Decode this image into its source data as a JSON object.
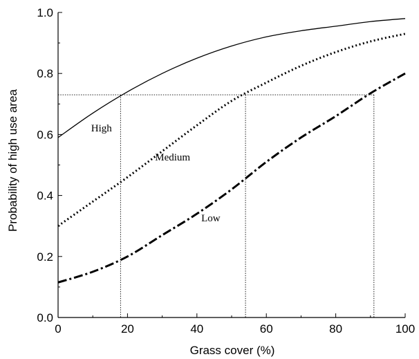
{
  "chart_data": {
    "type": "line",
    "xlabel": "Grass cover (%)",
    "ylabel": "Probability of high use area",
    "xlim": [
      0,
      100
    ],
    "ylim": [
      0,
      1.0
    ],
    "xticks": [
      0,
      20,
      40,
      60,
      80,
      100
    ],
    "yticks": [
      0.0,
      0.2,
      0.4,
      0.6,
      0.8,
      1.0
    ],
    "xtick_labels": [
      "0",
      "20",
      "40",
      "60",
      "80",
      "100"
    ],
    "ytick_labels": [
      "0.0",
      "0.2",
      "0.4",
      "0.6",
      "0.8",
      "1.0"
    ],
    "grid": false,
    "legend": "none",
    "series": [
      {
        "name": "High",
        "style": "solid",
        "x": [
          0,
          10,
          20,
          30,
          40,
          50,
          60,
          70,
          80,
          90,
          100
        ],
        "y": [
          0.59,
          0.67,
          0.74,
          0.8,
          0.85,
          0.89,
          0.92,
          0.94,
          0.955,
          0.97,
          0.98
        ]
      },
      {
        "name": "Medium",
        "style": "dotted",
        "x": [
          0,
          10,
          20,
          30,
          40,
          50,
          60,
          70,
          80,
          90,
          100
        ],
        "y": [
          0.3,
          0.38,
          0.46,
          0.545,
          0.63,
          0.71,
          0.77,
          0.825,
          0.87,
          0.905,
          0.93
        ]
      },
      {
        "name": "Low",
        "style": "dash-dot",
        "x": [
          0,
          10,
          20,
          30,
          40,
          50,
          60,
          70,
          80,
          90,
          100
        ],
        "y": [
          0.115,
          0.15,
          0.2,
          0.27,
          0.34,
          0.42,
          0.51,
          0.59,
          0.66,
          0.735,
          0.8
        ]
      }
    ],
    "reference_lines": {
      "y": 0.73,
      "x_intersections": [
        18,
        54,
        91
      ]
    },
    "series_labels": [
      {
        "text": "High",
        "x": 12.5,
        "y": 0.61
      },
      {
        "text": "Medium",
        "x": 33,
        "y": 0.515
      },
      {
        "text": "Low",
        "x": 44,
        "y": 0.315
      }
    ]
  }
}
